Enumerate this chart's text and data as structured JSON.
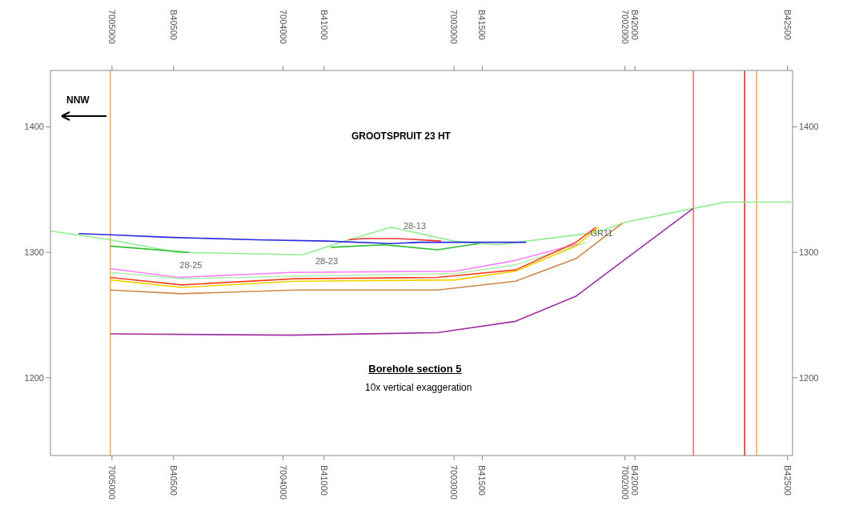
{
  "chart_data": {
    "type": "line",
    "title": "Borehole section 5",
    "subtitle": "10x vertical exaggeration",
    "annotations": [
      "NNW",
      "GROOTSPRUIT 23 HT",
      {
        "text": "28-13",
        "x": 7003305,
        "y": 1311
      },
      {
        "text": "28-25",
        "x": 7004614,
        "y": 1280
      },
      {
        "text": "28-23",
        "x": 7003820,
        "y": 1283
      },
      {
        "text": "GR11",
        "x": 7002212,
        "y": 1305
      }
    ],
    "xlim": [
      7005360,
      7001020
    ],
    "xticks": [
      7005000,
      {
        "value": 7004640,
        "label": "B40500"
      },
      7004000,
      {
        "value": 7003760,
        "label": "B41000"
      },
      7003000,
      {
        "value": 7002835,
        "label": "B41500"
      },
      7002000,
      {
        "value": 7001942,
        "label": "B42000"
      },
      {
        "value": 7001049,
        "label": "B42500"
      }
    ],
    "x2lim": [
      7005360,
      7001020
    ],
    "x2ticks": [
      7005000,
      {
        "value": 7004640,
        "label": "B40500"
      },
      7004000,
      {
        "value": 7003760,
        "label": "B41000"
      },
      7003000,
      {
        "value": 7002835,
        "label": "B41500"
      },
      7002000,
      {
        "value": 7001942,
        "label": "B42000"
      },
      {
        "value": 7001049,
        "label": "B42500"
      }
    ],
    "ylim": [
      1138,
      1445
    ],
    "yticks": [
      1200,
      1300,
      1400
    ],
    "y2lim": [
      1138,
      1445
    ],
    "y2ticks": [
      1200,
      1300,
      1400
    ],
    "grid": false,
    "ref_lines": [
      {
        "axis": "x",
        "value": 7005010,
        "color": "#f8a850"
      },
      {
        "axis": "x",
        "value": 7001600,
        "color": "#f06868"
      },
      {
        "axis": "x",
        "value": 7001300,
        "color": "#e02020"
      },
      {
        "axis": "x",
        "value": 7001230,
        "color": "#f8a040"
      }
    ],
    "series": [
      {
        "color": "#90ee90",
        "x": [
          7005360,
          7005010,
          7004614,
          7003886,
          7003616,
          7003367,
          7003001,
          7002744,
          7002162,
          7001996,
          7001601,
          7001414,
          7001028
        ],
        "values": [
          1317,
          1310,
          1300,
          1298,
          1310,
          1320,
          1309,
          1306,
          1316,
          1324,
          1335,
          1340,
          1340
        ]
      },
      {
        "color": "#2828e0",
        "x": [
          7005195,
          7005010,
          7004676,
          7004157,
          7003741,
          7003367,
          7003201,
          7002578
        ],
        "values": [
          1315,
          1314,
          1312,
          1310,
          1309,
          1307,
          1308,
          1308
        ]
      },
      {
        "color": "#30c030",
        "x": [
          7005010,
          7004551,
          7004100,
          7003720,
          7003409,
          7003326,
          7003097,
          7002856
        ],
        "values": [
          1305,
          1300,
          null,
          1304,
          1306,
          1305,
          1302,
          1307
        ]
      },
      {
        "color": "#f03030",
        "x": [
          7003616,
          7003533,
          7003326,
          7003076
        ],
        "values": [
          1310,
          1311,
          1311,
          1309
        ]
      },
      {
        "color": "#ff80ff",
        "x": [
          7005010,
          7004614,
          7003949,
          7002993,
          7002661,
          7002266
        ],
        "values": [
          1287,
          1280,
          1284,
          1285,
          1293,
          1307
        ]
      },
      {
        "color": "#b0f0b0",
        "x": [
          7005010,
          7004593,
          7003949,
          7002993,
          7002640,
          7002225
        ],
        "values": [
          1284,
          1279,
          1281,
          1283,
          1290,
          1308
        ]
      },
      {
        "color": "#ff4020",
        "x": [
          7005010,
          7004593,
          7003928,
          7003097,
          7002640,
          7002287,
          7002170
        ],
        "values": [
          1280,
          1274,
          1279,
          1280,
          1286,
          1308,
          1320
        ]
      },
      {
        "color": "#f0d000",
        "x": [
          7005010,
          7004593,
          7003928,
          7002993,
          7002640,
          7002287,
          7002154
        ],
        "values": [
          1278,
          1272,
          1277,
          1278,
          1285,
          1305,
          1320
        ]
      },
      {
        "color": "#d08848",
        "x": [
          7005010,
          7004593,
          7003928,
          7003097,
          7002640,
          7002287,
          7002017
        ],
        "values": [
          1270,
          1267,
          1270,
          1270,
          1277,
          1295,
          1323
        ]
      },
      {
        "color": "#a030a0",
        "x": [
          7005010,
          7003949,
          7003097,
          7002640,
          7002287,
          7001601
        ],
        "values": [
          1235,
          1234,
          1236,
          1245,
          1265,
          1335
        ]
      }
    ]
  }
}
